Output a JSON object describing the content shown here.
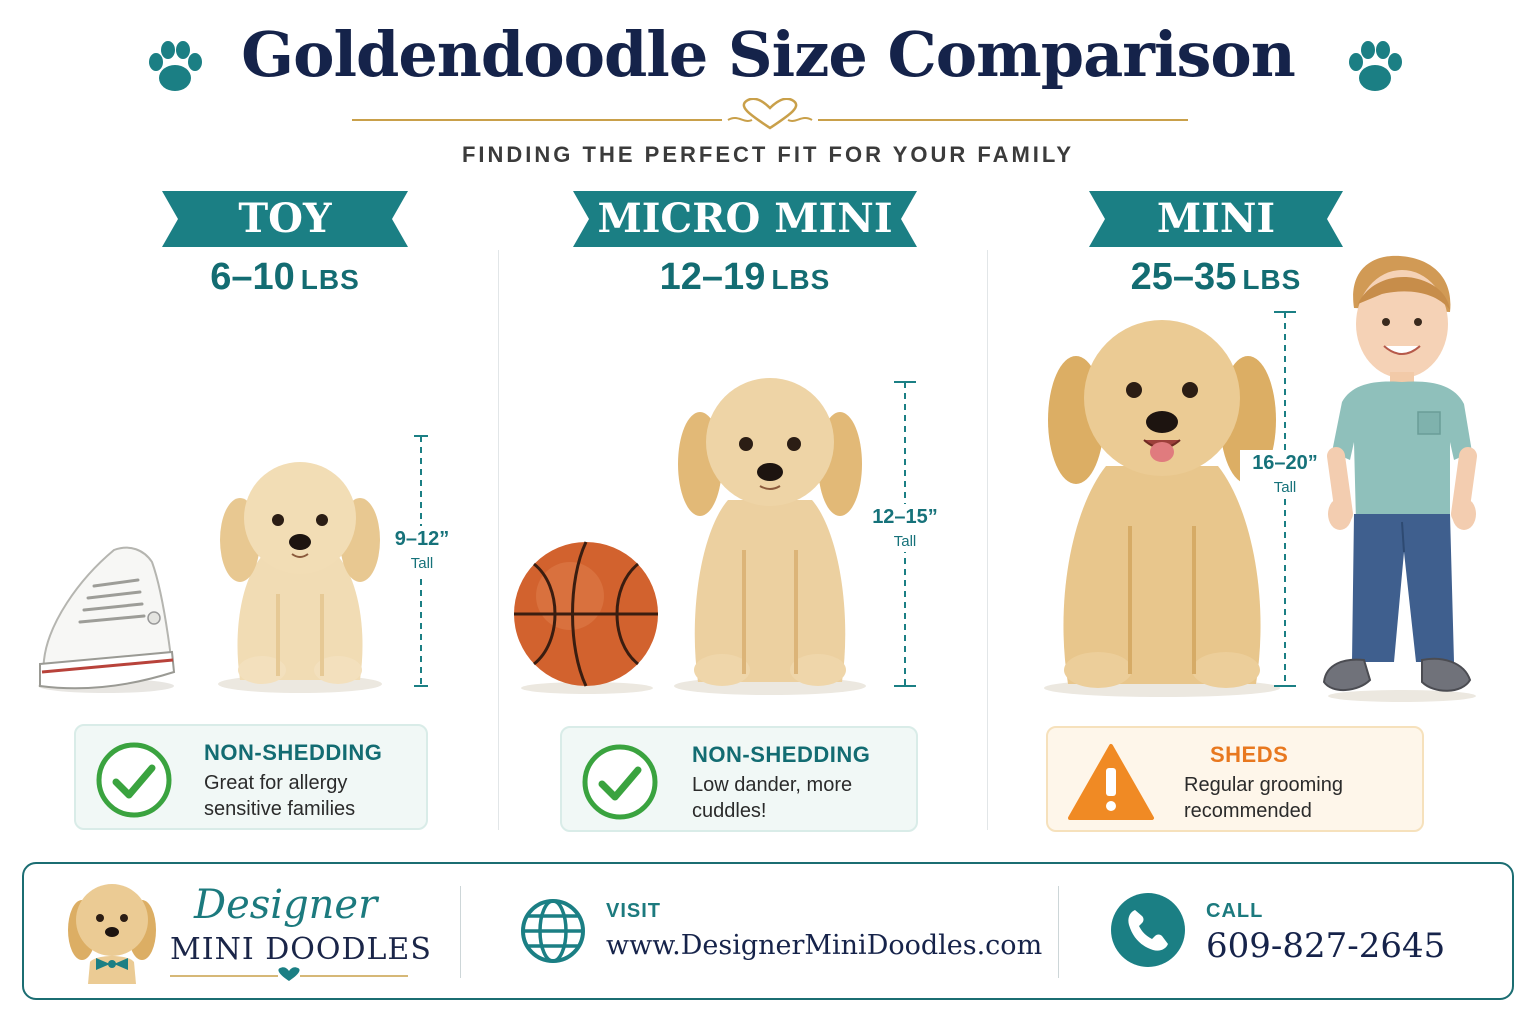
{
  "header": {
    "title": "Goldendoodle Size Comparison",
    "subtitle": "FINDING THE PERFECT FIT FOR YOUR FAMILY"
  },
  "colors": {
    "teal": "#1b7f84",
    "navy": "#15234a",
    "gold": "#c9a04a",
    "check_green": "#3aa33f",
    "warning_orange": "#f08a24"
  },
  "sizes": [
    {
      "name": "TOY",
      "weight_range": "6–10",
      "weight_unit": "LBS",
      "height_range": "9–12”",
      "height_unit": "Tall",
      "comparison_object": "sneaker",
      "status_icon": "check-circle-icon",
      "status_title": "NON-SHEDDING",
      "status_line1": "Great for allergy",
      "status_line2": "sensitive families"
    },
    {
      "name": "MICRO MINI",
      "weight_range": "12–19",
      "weight_unit": "LBS",
      "height_range": "12–15”",
      "height_unit": "Tall",
      "comparison_object": "basketball",
      "status_icon": "check-circle-icon",
      "status_title": "NON-SHEDDING",
      "status_line1": "Low dander, more",
      "status_line2": "cuddles!"
    },
    {
      "name": "MINI",
      "weight_range": "25–35",
      "weight_unit": "LBS",
      "height_range": "16–20”",
      "height_unit": "Tall",
      "comparison_object": "toddler",
      "status_icon": "warning-triangle-icon",
      "status_title": "SHEDS",
      "status_line1": "Regular grooming",
      "status_line2": "recommended"
    }
  ],
  "footer": {
    "brand_script": "Designer",
    "brand_name": "MINI DOODLES",
    "visit_label": "VISIT",
    "website": "www.DesignerMiniDoodles.com",
    "call_label": "CALL",
    "phone": "609-827-2645"
  }
}
